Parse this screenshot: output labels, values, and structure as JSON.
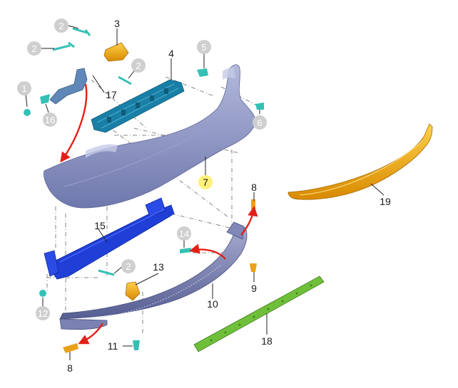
{
  "callouts": {
    "c1": "1",
    "c2a": "2",
    "c2b": "2",
    "c2c": "2",
    "c2d": "2",
    "c3": "3",
    "c4": "4",
    "c5": "5",
    "c6": "6",
    "c7": "7",
    "c8a": "8",
    "c8b": "8",
    "c9": "9",
    "c10": "10",
    "c11": "11",
    "c12": "12",
    "c13": "13",
    "c14": "14",
    "c15": "15",
    "c16": "16",
    "c17": "17",
    "c18": "18",
    "c19": "19"
  },
  "colors": {
    "bumper_cover": "#8f97c4",
    "reinforcement": "#1f3fd6",
    "absorber": "#1a7fa6",
    "spoiler_orange": "#f0a400",
    "reflector_strip": "#6fbf3a",
    "bracket": "#e9a11a",
    "clip_teal": "#35c0b5",
    "arrow_red": "#e32018"
  }
}
